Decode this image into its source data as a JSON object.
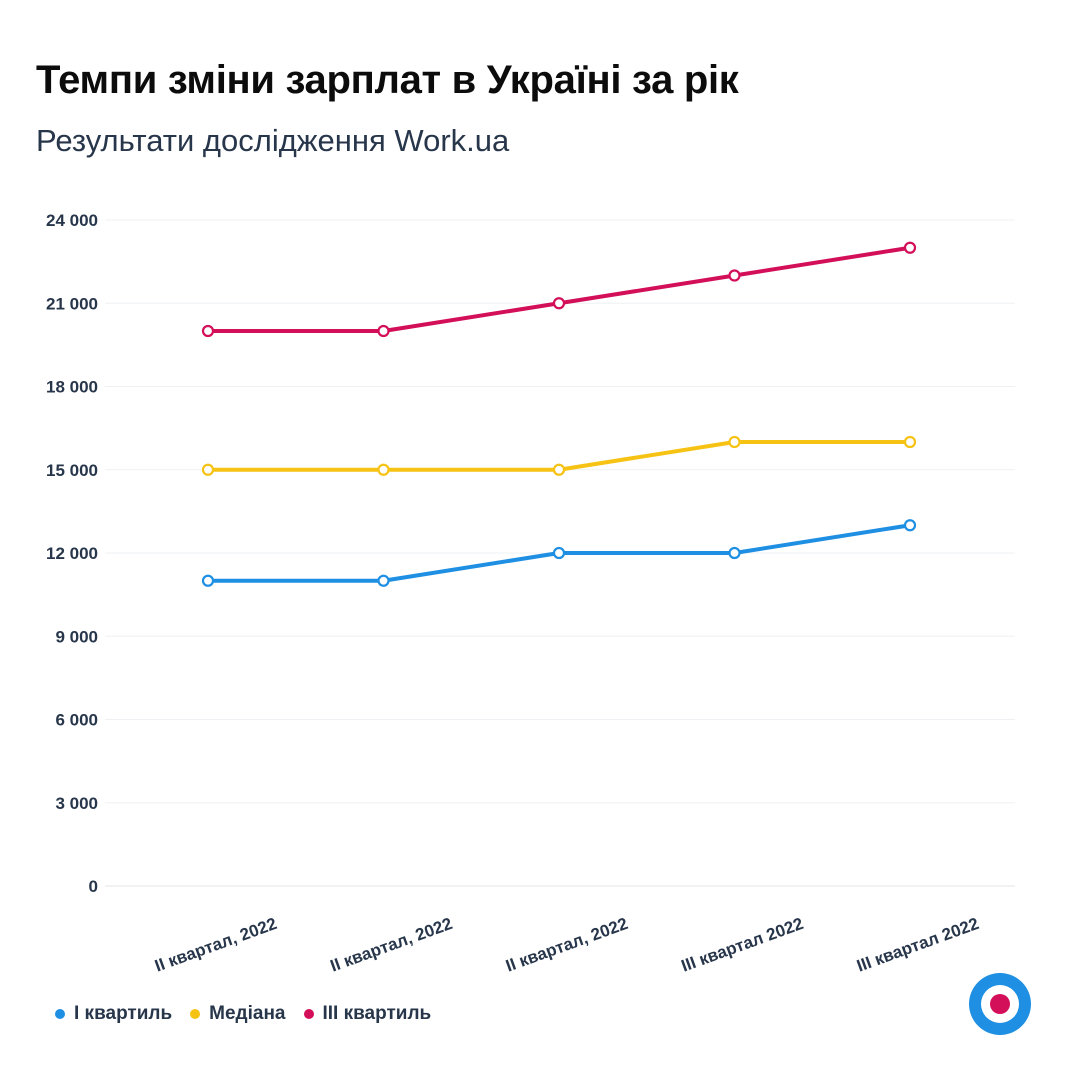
{
  "header": {
    "title": "Темпи зміни зарплат в Україні за рік",
    "subtitle": "Результати дослідження Work.ua"
  },
  "chart_data": {
    "type": "line",
    "title": "Темпи зміни зарплат в Україні за рік",
    "subtitle": "Результати дослідження Work.ua",
    "xlabel": "",
    "ylabel": "",
    "categories": [
      "II квартал, 2022",
      "II квартал, 2022",
      "II квартал, 2022",
      "III квартал 2022",
      "III квартал 2022"
    ],
    "ylim": [
      0,
      24000
    ],
    "yticks": [
      0,
      3000,
      6000,
      9000,
      12000,
      15000,
      18000,
      21000,
      24000
    ],
    "ytick_labels": [
      "0",
      "3 000",
      "6 000",
      "9 000",
      "12 000",
      "15 000",
      "18 000",
      "21 000",
      "24 000"
    ],
    "grid": true,
    "legend_position": "bottom-left",
    "series": [
      {
        "name": "I квартиль",
        "color": "#1e8fe3",
        "values": [
          11000,
          11000,
          12000,
          12000,
          13000
        ]
      },
      {
        "name": "Медіана",
        "color": "#f6c314",
        "values": [
          15000,
          15000,
          15000,
          16000,
          16000
        ]
      },
      {
        "name": "III квартиль",
        "color": "#d40f5a",
        "values": [
          20000,
          20000,
          21000,
          22000,
          23000
        ]
      }
    ]
  },
  "logo": {
    "name": "work-ua-logo-icon",
    "outer_color": "#1e8fe3",
    "inner_color": "#d40f5a"
  }
}
